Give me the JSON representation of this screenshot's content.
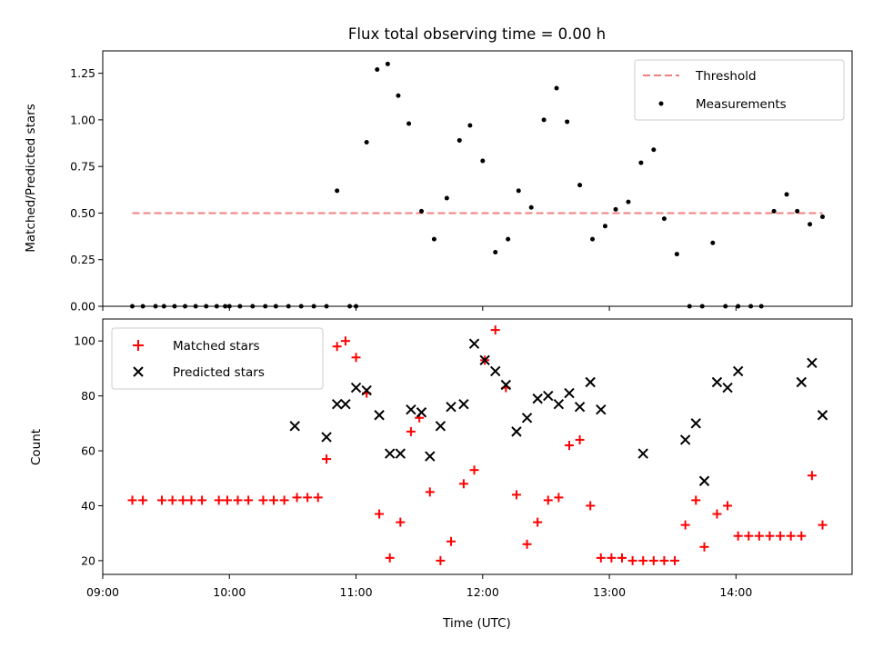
{
  "chart_data": [
    {
      "type": "scatter",
      "title": "Flux total observing time = 0.00 h",
      "xlabel": "",
      "ylabel": "Matched/Predicted stars",
      "xlim": [
        "09:00",
        "14:55"
      ],
      "ylim": [
        0,
        1.37
      ],
      "yticks": [
        "0.00",
        "0.25",
        "0.50",
        "0.75",
        "1.00",
        "1.25"
      ],
      "legend_position": "top-right",
      "threshold": {
        "name": "Threshold",
        "value": 0.5,
        "x_range": [
          "09:14",
          "14:41"
        ],
        "color": "#f08080"
      },
      "series": [
        {
          "name": "Measurements",
          "color": "#000000",
          "points": [
            [
              "09:14",
              0
            ],
            [
              "09:19",
              0
            ],
            [
              "09:25",
              0
            ],
            [
              "09:29",
              0
            ],
            [
              "09:34",
              0
            ],
            [
              "09:39",
              0
            ],
            [
              "09:44",
              0
            ],
            [
              "09:49",
              0
            ],
            [
              "09:54",
              0
            ],
            [
              "09:58",
              0
            ],
            [
              "10:00",
              0
            ],
            [
              "10:05",
              0
            ],
            [
              "10:11",
              0
            ],
            [
              "10:17",
              0
            ],
            [
              "10:22",
              0
            ],
            [
              "10:28",
              0
            ],
            [
              "10:34",
              0
            ],
            [
              "10:40",
              0
            ],
            [
              "10:46",
              0
            ],
            [
              "10:51",
              0.62
            ],
            [
              "10:57",
              0
            ],
            [
              "11:00",
              0
            ],
            [
              "11:05",
              0.88
            ],
            [
              "11:10",
              1.27
            ],
            [
              "11:15",
              1.3
            ],
            [
              "11:20",
              1.13
            ],
            [
              "11:25",
              0.98
            ],
            [
              "11:31",
              0.51
            ],
            [
              "11:37",
              0.36
            ],
            [
              "11:43",
              0.58
            ],
            [
              "11:49",
              0.89
            ],
            [
              "11:54",
              0.97
            ],
            [
              "12:00",
              0.78
            ],
            [
              "12:06",
              0.29
            ],
            [
              "12:12",
              0.36
            ],
            [
              "12:17",
              0.62
            ],
            [
              "12:23",
              0.53
            ],
            [
              "12:29",
              1.0
            ],
            [
              "12:35",
              1.17
            ],
            [
              "12:40",
              0.99
            ],
            [
              "12:46",
              0.65
            ],
            [
              "12:52",
              0.36
            ],
            [
              "12:58",
              0.43
            ],
            [
              "13:03",
              0.52
            ],
            [
              "13:09",
              0.56
            ],
            [
              "13:15",
              0.77
            ],
            [
              "13:21",
              0.84
            ],
            [
              "13:26",
              0.47
            ],
            [
              "13:32",
              0.28
            ],
            [
              "13:38",
              0
            ],
            [
              "13:44",
              0
            ],
            [
              "13:49",
              0.34
            ],
            [
              "13:55",
              0
            ],
            [
              "14:01",
              0
            ],
            [
              "14:07",
              0
            ],
            [
              "14:12",
              0
            ],
            [
              "14:18",
              0.51
            ],
            [
              "14:24",
              0.6
            ],
            [
              "14:29",
              0.51
            ],
            [
              "14:35",
              0.44
            ],
            [
              "14:41",
              0.48
            ]
          ]
        }
      ]
    },
    {
      "type": "scatter",
      "title": "",
      "xlabel": "Time (UTC)",
      "ylabel": "Count",
      "xlim": [
        "09:00",
        "14:55"
      ],
      "ylim": [
        15,
        108
      ],
      "xticks": [
        "09:00",
        "10:00",
        "11:00",
        "12:00",
        "13:00",
        "14:00"
      ],
      "yticks": [
        "20",
        "40",
        "60",
        "80",
        "100"
      ],
      "legend_position": "top-left",
      "series": [
        {
          "name": "Matched stars",
          "marker": "+",
          "color": "#ff0000",
          "points": [
            [
              "09:14",
              42
            ],
            [
              "09:19",
              42
            ],
            [
              "09:28",
              42
            ],
            [
              "09:33",
              42
            ],
            [
              "09:38",
              42
            ],
            [
              "09:42",
              42
            ],
            [
              "09:47",
              42
            ],
            [
              "09:55",
              42
            ],
            [
              "09:59",
              42
            ],
            [
              "10:04",
              42
            ],
            [
              "10:09",
              42
            ],
            [
              "10:16",
              42
            ],
            [
              "10:21",
              42
            ],
            [
              "10:26",
              42
            ],
            [
              "10:32",
              43
            ],
            [
              "10:37",
              43
            ],
            [
              "10:42",
              43
            ],
            [
              "10:46",
              57
            ],
            [
              "10:51",
              98
            ],
            [
              "10:55",
              100
            ],
            [
              "11:00",
              94
            ],
            [
              "11:05",
              81
            ],
            [
              "11:11",
              37
            ],
            [
              "11:16",
              21
            ],
            [
              "11:21",
              34
            ],
            [
              "11:26",
              67
            ],
            [
              "11:30",
              72
            ],
            [
              "11:35",
              45
            ],
            [
              "11:40",
              20
            ],
            [
              "11:45",
              27
            ],
            [
              "11:51",
              48
            ],
            [
              "11:56",
              53
            ],
            [
              "12:01",
              93
            ],
            [
              "12:06",
              104
            ],
            [
              "12:11",
              83
            ],
            [
              "12:16",
              44
            ],
            [
              "12:21",
              26
            ],
            [
              "12:26",
              34
            ],
            [
              "12:31",
              42
            ],
            [
              "12:36",
              43
            ],
            [
              "12:41",
              62
            ],
            [
              "12:46",
              64
            ],
            [
              "12:51",
              40
            ],
            [
              "12:56",
              21
            ],
            [
              "13:01",
              21
            ],
            [
              "13:06",
              21
            ],
            [
              "13:11",
              20
            ],
            [
              "13:16",
              20
            ],
            [
              "13:21",
              20
            ],
            [
              "13:26",
              20
            ],
            [
              "13:31",
              20
            ],
            [
              "13:36",
              33
            ],
            [
              "13:41",
              42
            ],
            [
              "13:45",
              25
            ],
            [
              "13:51",
              37
            ],
            [
              "13:56",
              40
            ],
            [
              "14:01",
              29
            ],
            [
              "14:06",
              29
            ],
            [
              "14:11",
              29
            ],
            [
              "14:16",
              29
            ],
            [
              "14:21",
              29
            ],
            [
              "14:26",
              29
            ],
            [
              "14:31",
              29
            ],
            [
              "14:36",
              51
            ],
            [
              "14:41",
              33
            ]
          ]
        },
        {
          "name": "Predicted stars",
          "marker": "x",
          "color": "#000000",
          "points": [
            [
              "10:31",
              69
            ],
            [
              "10:46",
              65
            ],
            [
              "10:51",
              77
            ],
            [
              "10:55",
              77
            ],
            [
              "11:00",
              83
            ],
            [
              "11:05",
              82
            ],
            [
              "11:11",
              73
            ],
            [
              "11:16",
              59
            ],
            [
              "11:21",
              59
            ],
            [
              "11:26",
              75
            ],
            [
              "11:31",
              74
            ],
            [
              "11:35",
              58
            ],
            [
              "11:40",
              69
            ],
            [
              "11:45",
              76
            ],
            [
              "11:51",
              77
            ],
            [
              "11:56",
              99
            ],
            [
              "12:01",
              93
            ],
            [
              "12:06",
              89
            ],
            [
              "12:11",
              84
            ],
            [
              "12:16",
              67
            ],
            [
              "12:21",
              72
            ],
            [
              "12:26",
              79
            ],
            [
              "12:31",
              80
            ],
            [
              "12:36",
              77
            ],
            [
              "12:41",
              81
            ],
            [
              "12:46",
              76
            ],
            [
              "12:51",
              85
            ],
            [
              "12:56",
              75
            ],
            [
              "13:16",
              59
            ],
            [
              "13:36",
              64
            ],
            [
              "13:41",
              70
            ],
            [
              "13:45",
              49
            ],
            [
              "13:51",
              85
            ],
            [
              "13:56",
              83
            ],
            [
              "14:01",
              89
            ],
            [
              "14:31",
              85
            ],
            [
              "14:36",
              92
            ],
            [
              "14:41",
              73
            ]
          ]
        }
      ]
    }
  ]
}
